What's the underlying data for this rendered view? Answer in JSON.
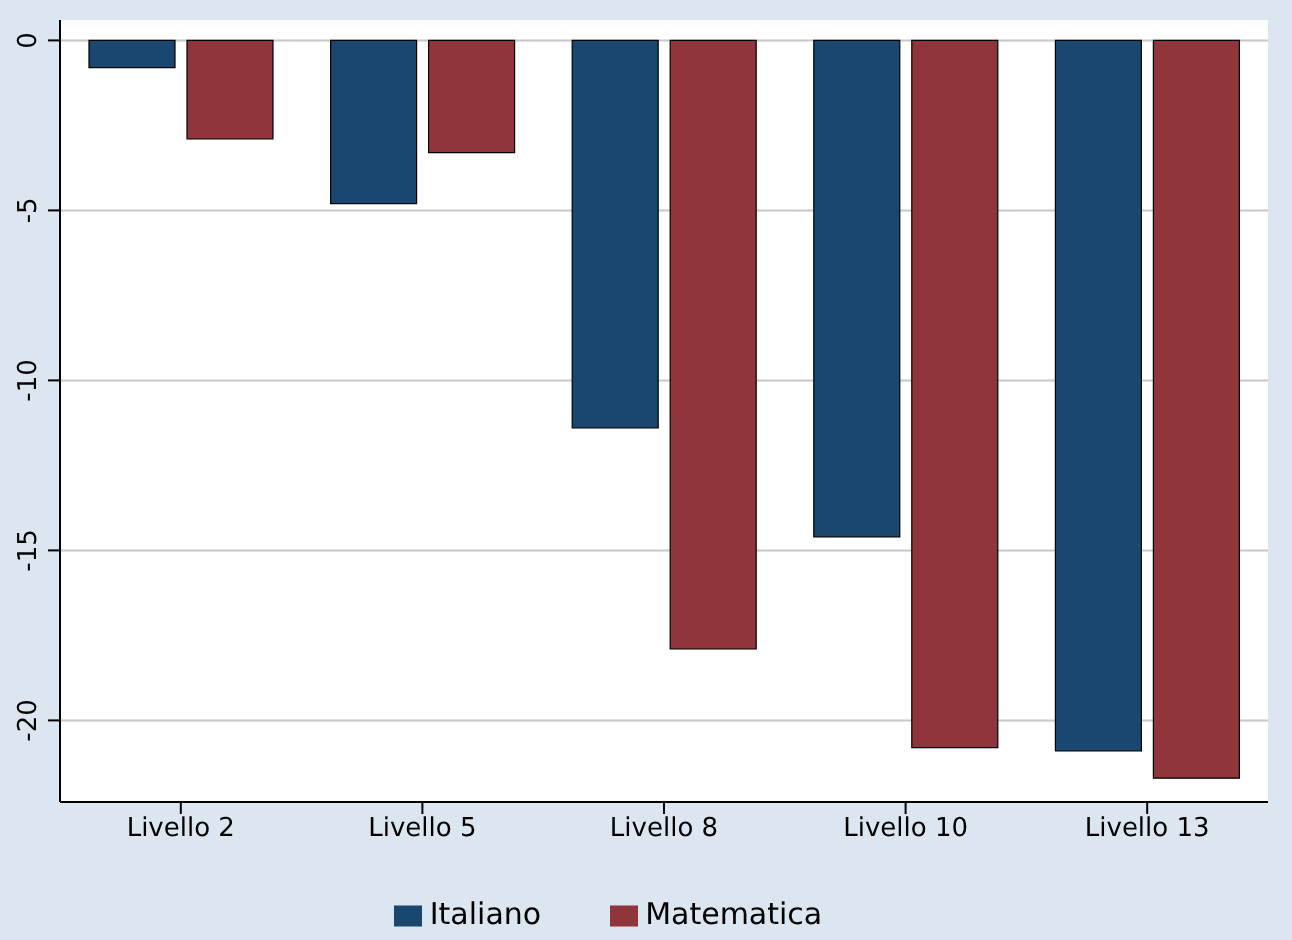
{
  "chart_data": {
    "type": "bar",
    "categories": [
      "Livello 2",
      "Livello 5",
      "Livello 8",
      "Livello 10",
      "Livello 13"
    ],
    "series": [
      {
        "name": "Italiano",
        "color": "#1a476f",
        "values": [
          -0.8,
          -4.8,
          -11.4,
          -14.6,
          -20.9
        ]
      },
      {
        "name": "Matematica",
        "color": "#90353b",
        "values": [
          -2.9,
          -3.3,
          -17.9,
          -20.8,
          -21.7
        ]
      }
    ],
    "ylim": [
      -22.4,
      0.6
    ],
    "yticks": [
      0,
      -5,
      -10,
      -15,
      -20
    ],
    "grid": "y",
    "legend": "bottom"
  }
}
